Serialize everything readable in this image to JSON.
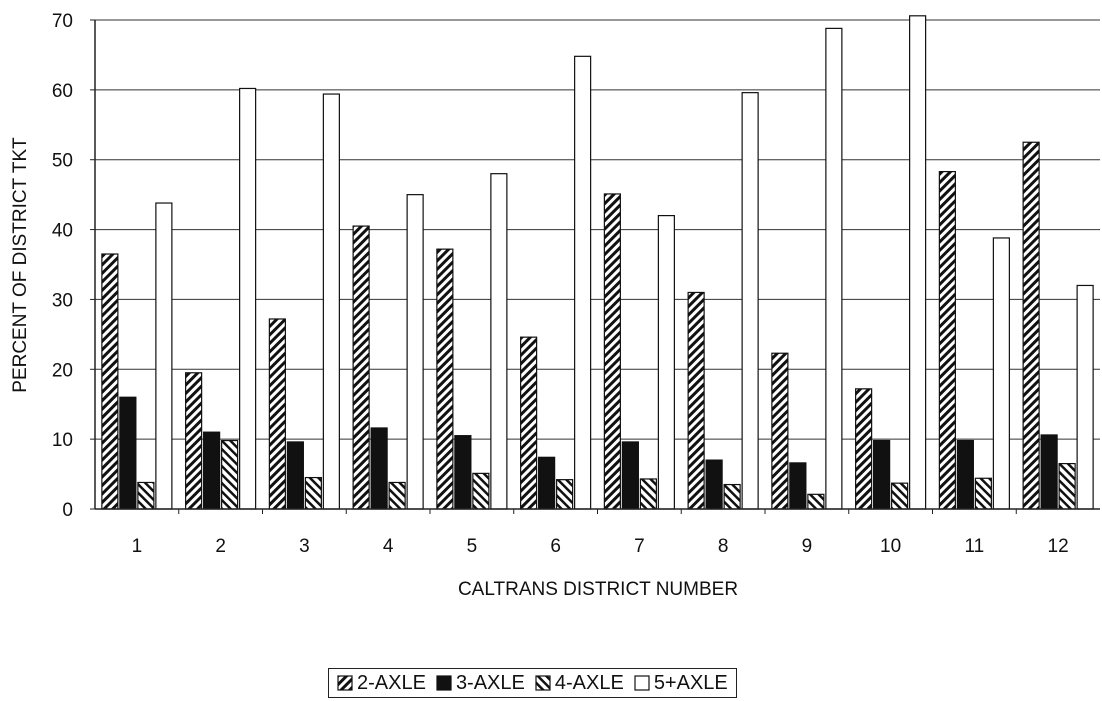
{
  "chart_data": {
    "type": "bar",
    "title": "",
    "xlabel": "CALTRANS DISTRICT NUMBER",
    "ylabel": "PERCENT OF DISTRICT TKT",
    "categories": [
      "1",
      "2",
      "3",
      "4",
      "5",
      "6",
      "7",
      "8",
      "9",
      "10",
      "11",
      "12"
    ],
    "ylim": [
      0,
      70
    ],
    "yticks": [
      0,
      10,
      20,
      30,
      40,
      50,
      60,
      70
    ],
    "grid": true,
    "legend_position": "bottom",
    "series": [
      {
        "name": "2-AXLE",
        "pattern": "diagonal-hatch-right",
        "values": [
          36.5,
          19.5,
          27.2,
          40.5,
          37.2,
          24.6,
          45.1,
          31.0,
          22.3,
          17.2,
          48.3,
          52.5
        ]
      },
      {
        "name": "3-AXLE",
        "pattern": "solid-black",
        "values": [
          16.0,
          11.0,
          9.6,
          11.6,
          10.5,
          7.4,
          9.6,
          7.0,
          6.6,
          9.8,
          9.8,
          10.6
        ]
      },
      {
        "name": "4-AXLE",
        "pattern": "diagonal-hatch-left",
        "values": [
          3.8,
          9.8,
          4.5,
          3.8,
          5.1,
          4.2,
          4.3,
          3.5,
          2.1,
          3.7,
          4.4,
          6.5
        ]
      },
      {
        "name": "5+AXLE",
        "pattern": "white",
        "values": [
          43.8,
          60.2,
          59.4,
          45.0,
          48.0,
          64.8,
          42.0,
          59.6,
          68.8,
          70.6,
          38.8,
          32.0
        ]
      }
    ]
  }
}
